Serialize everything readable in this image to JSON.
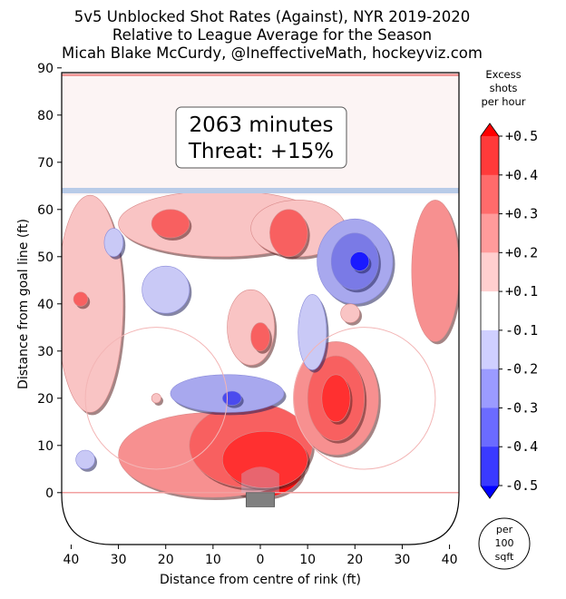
{
  "chart_data": {
    "type": "heatmap",
    "title": [
      "5v5 Unblocked Shot Rates (Against), NYR 2019-2020",
      "Relative to League Average for the Season",
      "Micah Blake McCurdy, @IneffectiveMath, hockeyviz.com"
    ],
    "xlabel": "Distance from centre of rink (ft)",
    "ylabel": "Distance from goal line (ft)",
    "xlim": [
      -42,
      42
    ],
    "ylim": [
      -11,
      89
    ],
    "x_ticks": [
      40,
      30,
      20,
      10,
      0,
      10,
      20,
      30,
      40
    ],
    "x_tick_values": [
      -40,
      -30,
      -20,
      -10,
      0,
      10,
      20,
      30,
      40
    ],
    "y_ticks": [
      0,
      10,
      20,
      30,
      40,
      50,
      60,
      70,
      80,
      90
    ],
    "annotation": {
      "line1": "2063 minutes",
      "line2": "Threat: +15%"
    },
    "colorbar": {
      "title": [
        "Excess",
        "shots",
        "per hour"
      ],
      "ticks": [
        "+0.5",
        "+0.4",
        "+0.3",
        "+0.2",
        "+0.1",
        "-0.1",
        "-0.2",
        "-0.3",
        "-0.4",
        "-0.5"
      ],
      "unit": [
        "per",
        "100",
        "sqft"
      ],
      "colors": [
        "#ff0000",
        "#ff3a3a",
        "#ff6b6b",
        "#ff9b9b",
        "#ffcfcf",
        "#ffffff",
        "#cfcfff",
        "#9b9bff",
        "#6b6bff",
        "#3a3aff",
        "#0000ff"
      ]
    },
    "blobs": [
      {
        "x": 0,
        "y": 5,
        "rx": 9,
        "ry": 6,
        "level": 0.5
      },
      {
        "x": -10,
        "y": 8,
        "rx": 20,
        "ry": 9,
        "level": 0.2
      },
      {
        "x": -2,
        "y": 10,
        "rx": 13,
        "ry": 9,
        "level": 0.3
      },
      {
        "x": 1,
        "y": 7,
        "rx": 9,
        "ry": 6,
        "level": 0.4
      },
      {
        "x": 16,
        "y": 20,
        "rx": 9,
        "ry": 12,
        "level": 0.2
      },
      {
        "x": 16,
        "y": 20,
        "rx": 6,
        "ry": 9,
        "level": 0.3
      },
      {
        "x": 16,
        "y": 20,
        "rx": 3,
        "ry": 5,
        "level": 0.4
      },
      {
        "x": -8,
        "y": 57,
        "rx": 22,
        "ry": 7,
        "level": 0.15
      },
      {
        "x": 8,
        "y": 56,
        "rx": 10,
        "ry": 6,
        "level": 0.15
      },
      {
        "x": -19,
        "y": 57,
        "rx": 4,
        "ry": 3,
        "level": 0.3
      },
      {
        "x": 6,
        "y": 55,
        "rx": 4,
        "ry": 5,
        "level": 0.3
      },
      {
        "x": -36,
        "y": 40,
        "rx": 7,
        "ry": 23,
        "level": 0.15
      },
      {
        "x": 37,
        "y": 47,
        "rx": 5,
        "ry": 15,
        "level": 0.2
      },
      {
        "x": -2,
        "y": 35,
        "rx": 5,
        "ry": 8,
        "level": 0.15
      },
      {
        "x": 0,
        "y": 33,
        "rx": 2,
        "ry": 3,
        "level": 0.3
      },
      {
        "x": 20,
        "y": 49,
        "rx": 8,
        "ry": 9,
        "level": -0.2
      },
      {
        "x": 20,
        "y": 49,
        "rx": 5,
        "ry": 6,
        "level": -0.3
      },
      {
        "x": 21,
        "y": 49,
        "rx": 2,
        "ry": 2,
        "level": -0.5
      },
      {
        "x": -7,
        "y": 21,
        "rx": 12,
        "ry": 4,
        "level": -0.2
      },
      {
        "x": -6,
        "y": 20,
        "rx": 2,
        "ry": 1.5,
        "level": -0.4
      },
      {
        "x": -20,
        "y": 43,
        "rx": 5,
        "ry": 5,
        "level": -0.15
      },
      {
        "x": -31,
        "y": 53,
        "rx": 2,
        "ry": 3,
        "level": -0.15
      },
      {
        "x": 11,
        "y": 34,
        "rx": 3,
        "ry": 8,
        "level": -0.15
      },
      {
        "x": -37,
        "y": 7,
        "rx": 2,
        "ry": 2,
        "level": -0.15
      },
      {
        "x": 19,
        "y": 38,
        "rx": 2,
        "ry": 2,
        "level": 0.15
      },
      {
        "x": -38,
        "y": 41,
        "rx": 1.5,
        "ry": 1.5,
        "level": 0.3
      },
      {
        "x": -22,
        "y": 20,
        "rx": 1,
        "ry": 1,
        "level": 0.15
      }
    ],
    "grid": false
  }
}
